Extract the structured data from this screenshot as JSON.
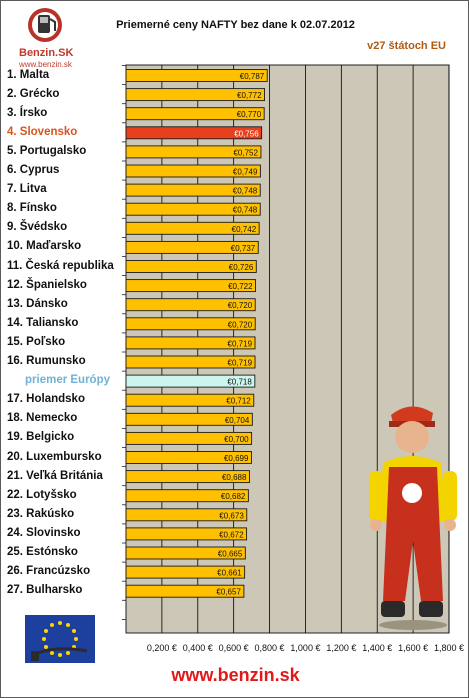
{
  "logo": {
    "brand": "Benzin.SK",
    "url": "www.benzin.sk"
  },
  "chart_data": {
    "type": "bar",
    "orientation": "horizontal",
    "title": "Priemerné ceny NAFTY bez dane k 02.07.2012",
    "subtitle": "v27 štátoch EU",
    "categories": [
      "1. Malta",
      "2. Grécko",
      "3. Írsko",
      "4. Slovensko",
      "5. Portugalsko",
      "6. Cyprus",
      "7. Litva",
      "8. Fínsko",
      "9. Švédsko",
      "10. Maďarsko",
      "11. Česká republika",
      "12. Španielsko",
      "13. Dánsko",
      "14. Taliansko",
      "15. Poľsko",
      "16. Rumunsko",
      "priemer Európy",
      "17. Holandsko",
      "18. Nemecko",
      "19. Belgicko",
      "20. Luxembursko",
      "21. Veľká Británia",
      "22. Lotyšsko",
      "23. Rakúsko",
      "24. Slovinsko",
      "25. Estónsko",
      "26. Francúzsko",
      "27. Bulharsko"
    ],
    "values": [
      0.787,
      0.772,
      0.77,
      0.756,
      0.752,
      0.749,
      0.748,
      0.748,
      0.742,
      0.737,
      0.726,
      0.722,
      0.72,
      0.72,
      0.719,
      0.719,
      0.718,
      0.712,
      0.704,
      0.7,
      0.699,
      0.688,
      0.682,
      0.673,
      0.672,
      0.665,
      0.661,
      0.657
    ],
    "data_labels": [
      "€0,787",
      "€0,772",
      "€0,770",
      "€0,756",
      "€0,752",
      "€0,749",
      "€0,748",
      "€0,748",
      "€0,742",
      "€0,737",
      "€0,726",
      "€0,722",
      "€0,720",
      "€0,720",
      "€0,719",
      "€0,719",
      "€0,718",
      "€0,712",
      "€0,704",
      "€0,700",
      "€0,699",
      "€0,688",
      "€0,682",
      "€0,673",
      "€0,672",
      "€0,665",
      "€0,661",
      "€0,657"
    ],
    "highlight_category": "4. Slovensko",
    "average_category": "priemer Európy",
    "xlim": [
      0,
      1.8
    ],
    "x_tick_values": [
      0.2,
      0.4,
      0.6,
      0.8,
      1.0,
      1.2,
      1.4,
      1.6,
      1.8
    ],
    "x_tick_labels": [
      "0,200 €",
      "0,400 €",
      "0,600 €",
      "0,800 €",
      "1,000 €",
      "1,200 €",
      "1,400 €",
      "1,600 €",
      "1,800 €"
    ],
    "grid": true,
    "colors": {
      "bar": "#ffc000",
      "highlight_bar": "#e8401c",
      "average_bar": "#ccf5ee",
      "plot_background": "#cdc7b8",
      "gridline": "#000000"
    }
  },
  "footer": {
    "url": "www.benzin.sk"
  }
}
